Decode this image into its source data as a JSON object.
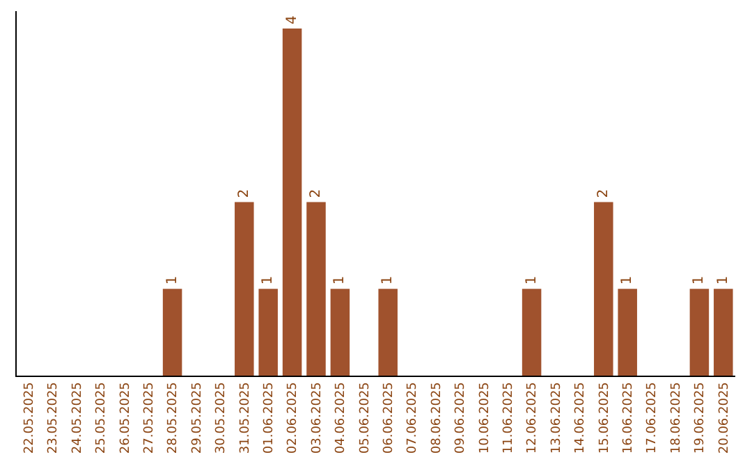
{
  "chart_data": {
    "type": "bar",
    "categories": [
      "22.05.2025",
      "23.05.2025",
      "24.05.2025",
      "25.05.2025",
      "26.05.2025",
      "27.05.2025",
      "28.05.2025",
      "29.05.2025",
      "30.05.2025",
      "31.05.2025",
      "01.06.2025",
      "02.06.2025",
      "03.06.2025",
      "04.06.2025",
      "05.06.2025",
      "06.06.2025",
      "07.06.2025",
      "08.06.2025",
      "09.06.2025",
      "10.06.2025",
      "11.06.2025",
      "12.06.2025",
      "13.06.2025",
      "14.06.2025",
      "15.06.2025",
      "16.06.2025",
      "17.06.2025",
      "18.06.2025",
      "19.06.2025",
      "20.06.2025"
    ],
    "values": [
      0,
      0,
      0,
      0,
      0,
      0,
      1,
      0,
      0,
      2,
      1,
      4,
      2,
      1,
      0,
      1,
      0,
      0,
      0,
      0,
      0,
      1,
      0,
      0,
      2,
      1,
      0,
      0,
      1,
      1
    ],
    "value_labels": [
      null,
      null,
      null,
      null,
      null,
      null,
      "1",
      null,
      null,
      "2",
      "1",
      "4",
      "2",
      "1",
      null,
      "1",
      null,
      null,
      null,
      null,
      null,
      "1",
      null,
      null,
      "2",
      "1",
      null,
      null,
      "1",
      "1"
    ],
    "color": "#a0522d",
    "ylim": [
      0,
      4.2
    ],
    "tick_labels": "x"
  }
}
